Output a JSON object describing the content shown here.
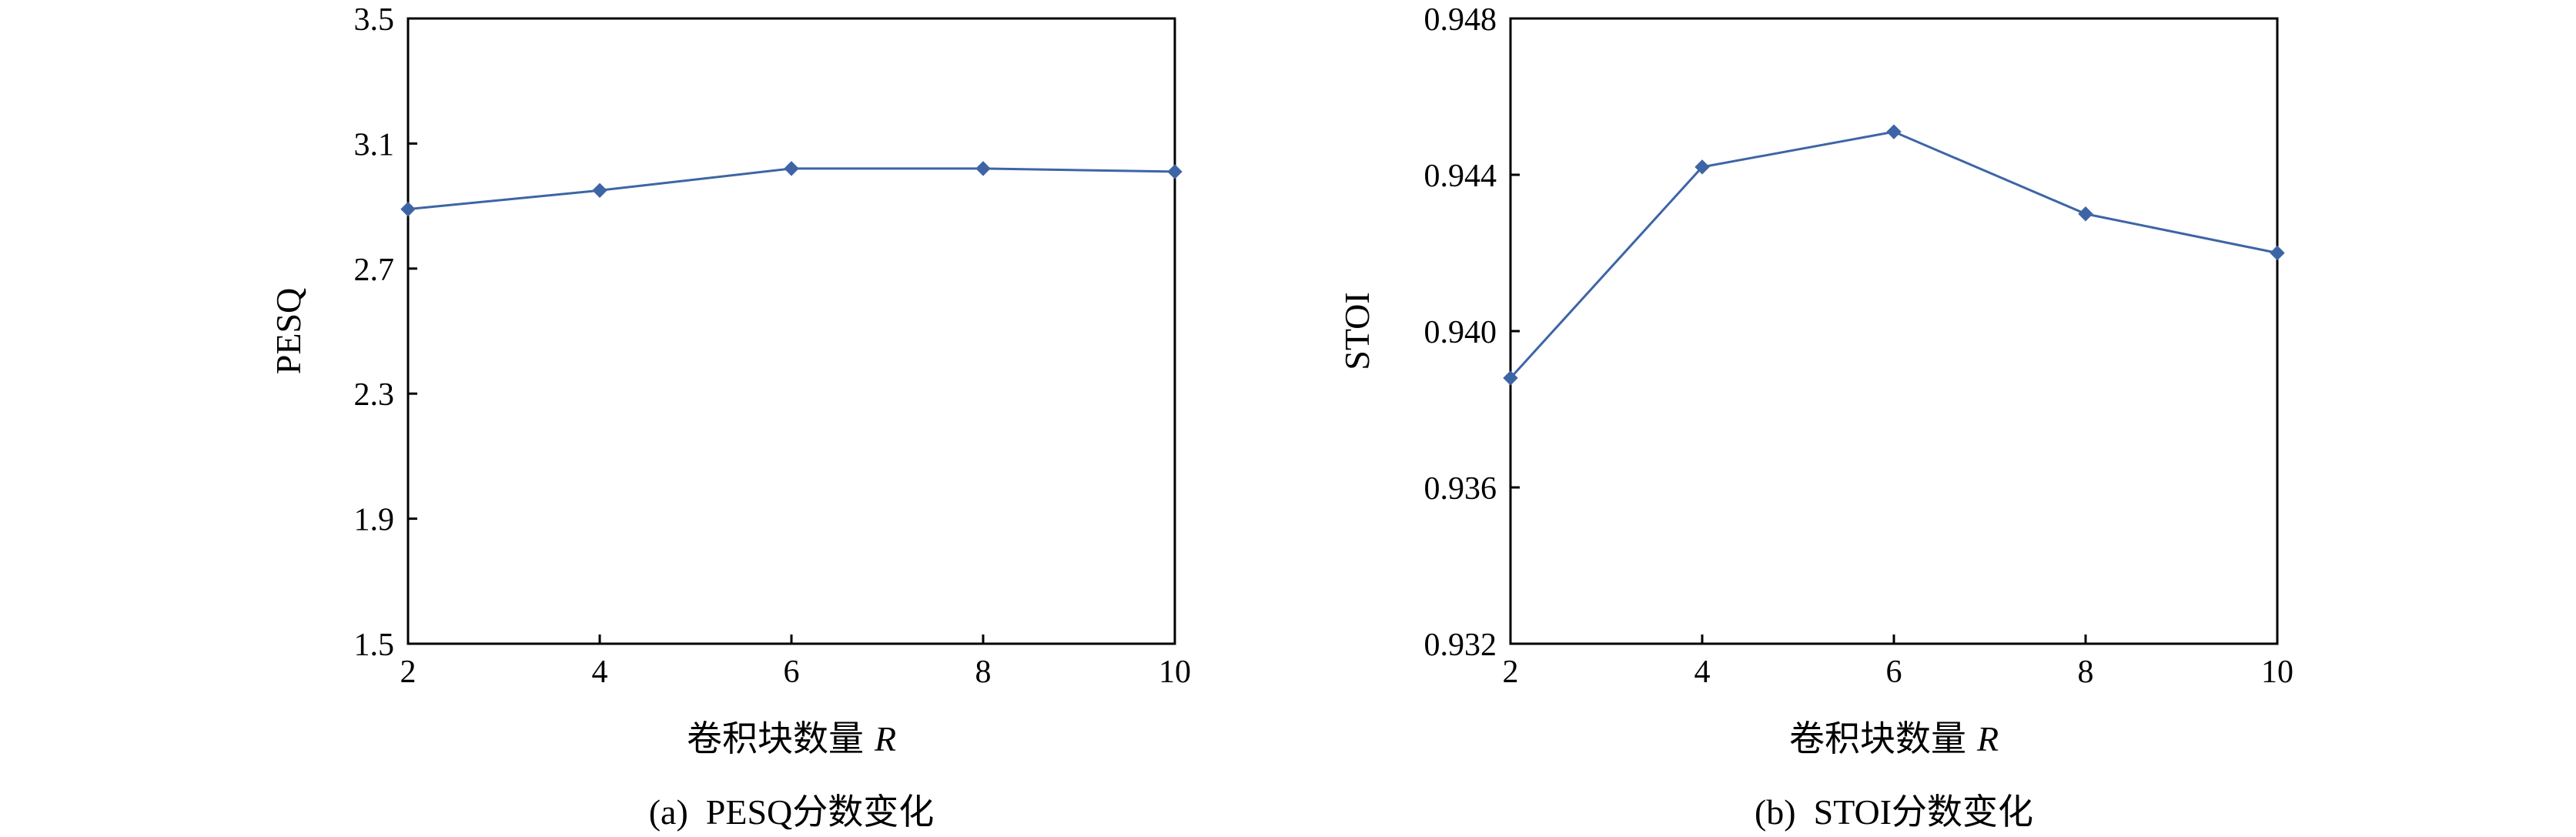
{
  "chart_data": [
    {
      "type": "line",
      "caption": "(a)  PESQ分数变化",
      "xlabel": "卷积块数量",
      "xlabel_var": "R",
      "ylabel": "PESQ",
      "x": [
        2,
        4,
        6,
        8,
        10
      ],
      "xticks": [
        "2",
        "4",
        "6",
        "8",
        "10"
      ],
      "ylim": [
        1.5,
        3.5
      ],
      "yticks": [
        1.5,
        1.9,
        2.3,
        2.7,
        3.1,
        3.5
      ],
      "ytick_labels": [
        "1.5",
        "1.9",
        "2.3",
        "2.7",
        "3.1",
        "3.5"
      ],
      "series": [
        {
          "values": [
            2.89,
            2.95,
            3.02,
            3.02,
            3.01
          ]
        }
      ],
      "grid": false,
      "marker": "diamond",
      "color": "#3d65a6"
    },
    {
      "type": "line",
      "caption": "(b)  STOI分数变化",
      "xlabel": "卷积块数量",
      "xlabel_var": "R",
      "ylabel": "STOI",
      "x": [
        2,
        4,
        6,
        8,
        10
      ],
      "xticks": [
        "2",
        "4",
        "6",
        "8",
        "10"
      ],
      "ylim": [
        0.932,
        0.948
      ],
      "yticks": [
        0.932,
        0.936,
        0.94,
        0.944,
        0.948
      ],
      "ytick_labels": [
        "0.932",
        "0.936",
        "0.940",
        "0.944",
        "0.948"
      ],
      "series": [
        {
          "values": [
            0.9388,
            0.9442,
            0.9451,
            0.943,
            0.942
          ]
        }
      ],
      "grid": false,
      "marker": "diamond",
      "color": "#3d65a6"
    }
  ]
}
